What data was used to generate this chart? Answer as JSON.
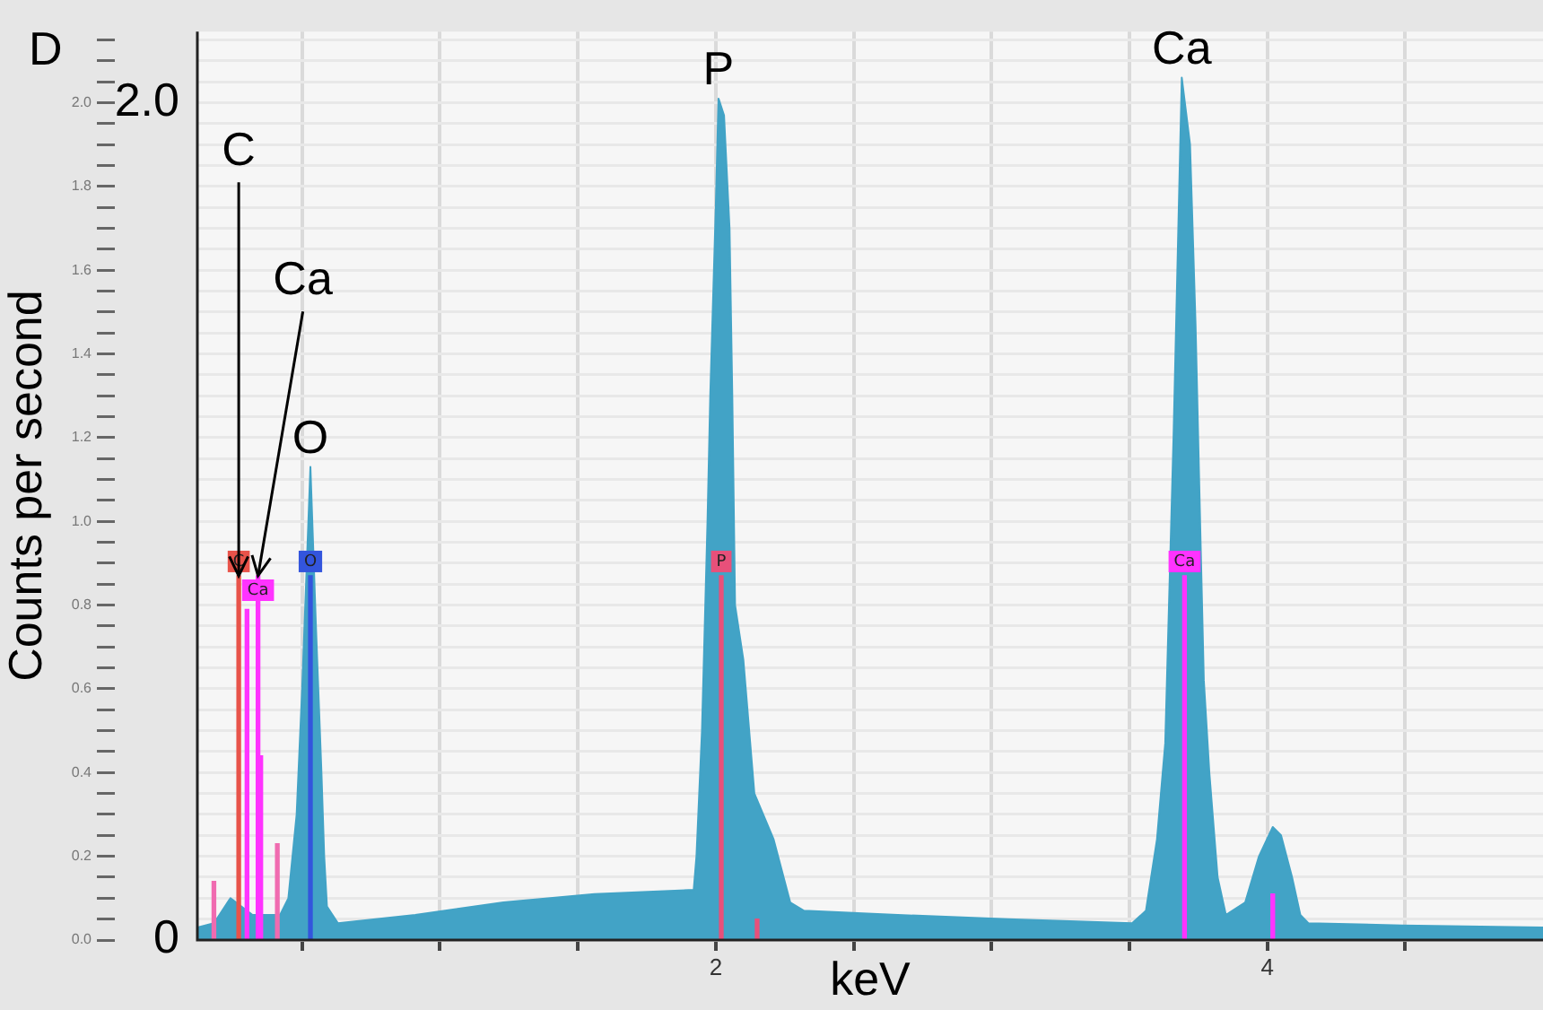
{
  "chart_data": {
    "type": "area",
    "xlabel": "keV",
    "ylabel": "Counts per second",
    "x": [
      0.12,
      0.18,
      0.24,
      0.32,
      0.42,
      0.45,
      0.48,
      0.5,
      0.53,
      0.55,
      0.57,
      0.58,
      0.59,
      0.63,
      0.91,
      1.23,
      1.56,
      1.92,
      1.93,
      1.95,
      1.97,
      1.98,
      2.0,
      2.01,
      2.03,
      2.05,
      2.06,
      2.07,
      2.1,
      2.14,
      2.21,
      2.27,
      2.32,
      2.66,
      3.06,
      3.51,
      3.56,
      3.6,
      3.63,
      3.66,
      3.69,
      3.72,
      3.74,
      3.76,
      3.77,
      3.79,
      3.82,
      3.85,
      3.92,
      3.97,
      4.02,
      4.05,
      4.09,
      4.12,
      4.15,
      4.49,
      5.0
    ],
    "series": [
      {
        "color": "#42a3c6",
        "values": [
          0.03,
          0.04,
          0.1,
          0.06,
          0.06,
          0.1,
          0.3,
          0.6,
          1.13,
          0.75,
          0.4,
          0.2,
          0.08,
          0.04,
          0.06,
          0.09,
          0.11,
          0.12,
          0.2,
          0.5,
          1.0,
          1.3,
          1.75,
          2.01,
          1.97,
          1.7,
          1.3,
          0.8,
          0.67,
          0.35,
          0.24,
          0.09,
          0.07,
          0.06,
          0.05,
          0.04,
          0.07,
          0.24,
          0.47,
          1.2,
          2.06,
          1.9,
          1.47,
          0.9,
          0.62,
          0.4,
          0.15,
          0.06,
          0.09,
          0.2,
          0.27,
          0.25,
          0.15,
          0.06,
          0.04,
          0.035,
          0.03
        ]
      },
      {
        "name": "C",
        "type": "bar",
        "color": "#e8534a",
        "x": [
          0.27
        ],
        "values": [
          0.87
        ]
      },
      {
        "name": "Ca",
        "type": "bar",
        "color": "#ff33ff",
        "x": [
          0.3,
          0.34,
          0.35
        ],
        "values": [
          0.79,
          0.87,
          0.44
        ]
      },
      {
        "type": "bar",
        "color": "#f06bb0",
        "x": [
          0.18,
          0.41
        ],
        "values": [
          0.14,
          0.23
        ]
      },
      {
        "name": "O",
        "type": "bar",
        "color": "#3355dd",
        "x": [
          0.53
        ],
        "values": [
          0.87
        ]
      },
      {
        "name": "P",
        "type": "bar",
        "color": "#e8507a",
        "x": [
          2.02,
          2.15
        ],
        "values": [
          0.87,
          0.05
        ]
      },
      {
        "name": "Ca",
        "type": "bar",
        "color": "#ff33ff",
        "x": [
          3.7,
          4.02
        ],
        "values": [
          0.87,
          0.11
        ]
      }
    ],
    "xlim": [
      0.12,
      5.0
    ],
    "xticks": [
      {
        "value": 0.5,
        "label": null
      },
      {
        "value": 1,
        "label": null
      },
      {
        "value": 1.5,
        "label": null
      },
      2,
      {
        "value": 2.5,
        "label": null
      },
      {
        "value": 3,
        "label": null
      },
      {
        "value": 3.5,
        "label": null
      },
      4,
      {
        "value": 4.5,
        "label": null
      }
    ],
    "ylim": [
      0,
      2.17
    ],
    "yticks": [
      {
        "value": 0,
        "label": "0.0"
      },
      {
        "value": 0.05,
        "label": null
      },
      {
        "value": 0.1,
        "label": null
      },
      {
        "value": 0.15,
        "label": null
      },
      {
        "value": 0.2,
        "label": "0.2"
      },
      {
        "value": 0.25,
        "label": null
      },
      {
        "value": 0.3,
        "label": null
      },
      {
        "value": 0.35,
        "label": null
      },
      {
        "value": 0.4,
        "label": "0.4"
      },
      {
        "value": 0.45,
        "label": null
      },
      {
        "value": 0.5,
        "label": null
      },
      {
        "value": 0.55,
        "label": null
      },
      {
        "value": 0.6,
        "label": "0.6"
      },
      {
        "value": 0.65,
        "label": null
      },
      {
        "value": 0.7,
        "label": null
      },
      {
        "value": 0.75,
        "label": null
      },
      {
        "value": 0.8,
        "label": "0.8"
      },
      {
        "value": 0.85,
        "label": null
      },
      {
        "value": 0.9,
        "label": null
      },
      {
        "value": 0.95,
        "label": null
      },
      {
        "value": 1,
        "label": "1.0"
      },
      {
        "value": 1.05,
        "label": null
      },
      {
        "value": 1.1,
        "label": null
      },
      {
        "value": 1.15,
        "label": null
      },
      {
        "value": 1.2,
        "label": "1.2"
      },
      {
        "value": 1.25,
        "label": null
      },
      {
        "value": 1.3,
        "label": null
      },
      {
        "value": 1.35,
        "label": null
      },
      {
        "value": 1.4,
        "label": "1.4"
      },
      {
        "value": 1.45,
        "label": null
      },
      {
        "value": 1.5,
        "label": null
      },
      {
        "value": 1.55,
        "label": null
      },
      {
        "value": 1.6,
        "label": "1.6"
      },
      {
        "value": 1.65,
        "label": null
      },
      {
        "value": 1.7,
        "label": null
      },
      {
        "value": 1.75,
        "label": null
      },
      {
        "value": 1.8,
        "label": "1.8"
      },
      {
        "value": 1.85,
        "label": null
      },
      {
        "value": 1.9,
        "label": null
      },
      {
        "value": 1.95,
        "label": null
      },
      {
        "value": 2,
        "label": "2.0"
      },
      {
        "value": 2.05,
        "label": null
      },
      {
        "value": 2.1,
        "label": null
      },
      {
        "value": 2.15,
        "label": null
      }
    ],
    "y2lim": [
      0,
      2.17
    ],
    "y2ticks": [
      {
        "value": 0,
        "label": "0"
      },
      {
        "value": 2,
        "label": "2.0"
      }
    ],
    "grid": true,
    "annotations": [
      "D",
      {
        "text": "C",
        "x": 0.27,
        "y": 0.87
      },
      {
        "text": "Ca",
        "x": 0.34,
        "y": 0.87
      },
      {
        "text": "O",
        "x": 0.53,
        "y": 1.13
      },
      {
        "text": "P",
        "x": 2.01,
        "y": 2.01
      },
      {
        "text": "Ca",
        "x": 3.69,
        "y": 2.06
      }
    ]
  }
}
